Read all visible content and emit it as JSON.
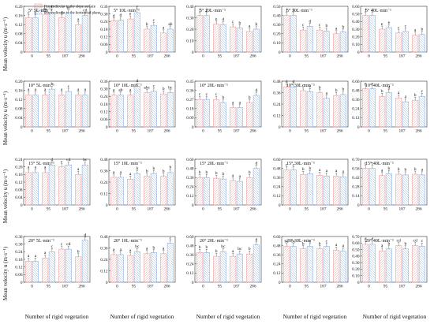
{
  "figure": {
    "legend": [
      "Perpendicular to the slope surface",
      "Perpendicular to the horizontal plane"
    ],
    "xlabel": "Number of rigid vegetation",
    "ylabel": "Mean velocity u (m·s⁻¹)",
    "colors": {
      "series1": "#f2a2a2",
      "series2": "#8fb3e3",
      "bg": "#ffffff",
      "axis": "#333333"
    }
  },
  "chart_data": [
    {
      "type": "bar",
      "title": "5°  5L·min⁻¹",
      "categories": [
        "0",
        "95",
        "187",
        "286"
      ],
      "ylim": [
        0,
        0.2
      ],
      "yticks": [
        0,
        0.04,
        0.08,
        0.12,
        0.16,
        0.2
      ],
      "series": [
        {
          "values": [
            0.15,
            0.165,
            0.15,
            0.12
          ]
        },
        {
          "values": [
            0.15,
            0.175,
            0.17,
            0.16
          ]
        }
      ],
      "labels": [
        [
          "c",
          "de",
          "d",
          "a"
        ],
        [
          "c",
          "f",
          "ef",
          "cd"
        ]
      ]
    },
    {
      "type": "bar",
      "title": "5°  10L·min⁻¹",
      "categories": [
        "0",
        "95",
        "187",
        "286"
      ],
      "ylim": [
        0,
        0.36
      ],
      "yticks": [
        0,
        0.06,
        0.12,
        0.18,
        0.24,
        0.3,
        0.36
      ],
      "series": [
        {
          "values": [
            0.245,
            0.26,
            0.18,
            0.15
          ]
        },
        {
          "values": [
            0.25,
            0.31,
            0.21,
            0.18
          ]
        }
      ],
      "labels": [
        [
          "d",
          "e",
          "b",
          "a"
        ],
        [
          "d",
          "f",
          "c",
          "ab"
        ]
      ]
    },
    {
      "type": "bar",
      "title": "5°  20L·min⁻¹",
      "categories": [
        "0",
        "95",
        "187",
        "286"
      ],
      "ylim": [
        0,
        0.4
      ],
      "yticks": [
        0,
        0.1,
        0.2,
        0.3,
        0.4
      ],
      "series": [
        {
          "values": [
            0.32,
            0.245,
            0.22,
            0.18
          ]
        },
        {
          "values": [
            0.32,
            0.24,
            0.21,
            0.2
          ]
        }
      ],
      "labels": [
        [
          "f",
          "e",
          "c",
          "a"
        ],
        [
          "f",
          "d",
          "b",
          "b"
        ]
      ]
    },
    {
      "type": "bar",
      "title": "5°  30L·min⁻¹",
      "categories": [
        "0",
        "95",
        "187",
        "286"
      ],
      "ylim": [
        0,
        0.5
      ],
      "yticks": [
        0,
        0.1,
        0.2,
        0.3,
        0.4,
        0.5
      ],
      "series": [
        {
          "values": [
            0.4,
            0.24,
            0.24,
            0.2
          ]
        },
        {
          "values": [
            0.4,
            0.28,
            0.23,
            0.22
          ]
        }
      ],
      "labels": [
        [
          "f",
          "c",
          "c",
          "a"
        ],
        [
          "f",
          "d",
          "b",
          "b"
        ]
      ]
    },
    {
      "type": "bar",
      "title": "5°  40L·min⁻¹",
      "categories": [
        "0",
        "95",
        "187",
        "286"
      ],
      "ylim": [
        0,
        0.6
      ],
      "yticks": [
        0,
        0.1,
        0.2,
        0.3,
        0.4,
        0.5,
        0.6
      ],
      "series": [
        {
          "values": [
            0.48,
            0.3,
            0.25,
            0.22
          ]
        },
        {
          "values": [
            0.48,
            0.32,
            0.27,
            0.23
          ]
        }
      ],
      "labels": [
        [
          "f",
          "e",
          "c",
          "a"
        ],
        [
          "f",
          "e",
          "c",
          "b"
        ]
      ]
    },
    {
      "type": "bar",
      "title": "10°  5L·min⁻¹",
      "categories": [
        "0",
        "95",
        "187",
        "286"
      ],
      "ylim": [
        0,
        0.2
      ],
      "yticks": [
        0,
        0.04,
        0.08,
        0.12,
        0.16,
        0.2
      ],
      "series": [
        {
          "values": [
            0.14,
            0.14,
            0.14,
            0.14
          ]
        },
        {
          "values": [
            0.14,
            0.165,
            0.155,
            0.14
          ]
        }
      ],
      "labels": [
        [
          "a",
          "a",
          "a",
          "a"
        ],
        [
          "a",
          "b",
          "c",
          "a"
        ]
      ]
    },
    {
      "type": "bar",
      "title": "10°  10L·min⁻¹",
      "categories": [
        "0",
        "95",
        "187",
        "286"
      ],
      "ylim": [
        0,
        0.36
      ],
      "yticks": [
        0,
        0.06,
        0.12,
        0.18,
        0.24,
        0.3,
        0.36
      ],
      "series": [
        {
          "values": [
            0.25,
            0.25,
            0.27,
            0.26
          ]
        },
        {
          "values": [
            0.25,
            0.32,
            0.28,
            0.27
          ]
        }
      ],
      "labels": [
        [
          "a",
          "a",
          "abc",
          "b"
        ],
        [
          "ab",
          "d",
          "c",
          "bc"
        ]
      ]
    },
    {
      "type": "bar",
      "title": "10°  20L·min⁻¹",
      "categories": [
        "0",
        "95",
        "187",
        "286"
      ],
      "ylim": [
        0,
        0.45
      ],
      "yticks": [
        0,
        0.09,
        0.18,
        0.27,
        0.36,
        0.45
      ],
      "series": [
        {
          "values": [
            0.27,
            0.27,
            0.19,
            0.24
          ]
        },
        {
          "values": [
            0.27,
            0.24,
            0.19,
            0.31
          ]
        }
      ],
      "labels": [
        [
          "c",
          "c",
          "a",
          "b"
        ],
        [
          "c",
          "b",
          "a",
          "d"
        ]
      ]
    },
    {
      "type": "bar",
      "title": "10°  30L·min⁻¹",
      "categories": [
        "0",
        "95",
        "187",
        "286"
      ],
      "ylim": [
        0,
        0.48
      ],
      "yticks": [
        0,
        0.12,
        0.24,
        0.36,
        0.48
      ],
      "series": [
        {
          "values": [
            0.42,
            0.38,
            0.36,
            0.33
          ]
        },
        {
          "values": [
            0.42,
            0.37,
            0.3,
            0.34
          ]
        }
      ],
      "labels": [
        [
          "d",
          "c",
          "b",
          "b"
        ],
        [
          "d",
          "c",
          "a",
          "b"
        ]
      ]
    },
    {
      "type": "bar",
      "title": "10°  40L·min⁻¹",
      "categories": [
        "0",
        "95",
        "187",
        "286"
      ],
      "ylim": [
        0,
        0.6
      ],
      "yticks": [
        0,
        0.12,
        0.24,
        0.36,
        0.48,
        0.6
      ],
      "series": [
        {
          "values": [
            0.5,
            0.4,
            0.38,
            0.35
          ]
        },
        {
          "values": [
            0.5,
            0.45,
            0.33,
            0.4
          ]
        }
      ],
      "labels": [
        [
          "e",
          "b",
          "a",
          "b"
        ],
        [
          "e",
          "d",
          "a",
          "c"
        ]
      ]
    },
    {
      "type": "bar",
      "title": "15°  5L·min⁻¹",
      "categories": [
        "0",
        "95",
        "187",
        "286"
      ],
      "ylim": [
        0,
        0.24
      ],
      "yticks": [
        0,
        0.04,
        0.08,
        0.12,
        0.16,
        0.2,
        0.24
      ],
      "series": [
        {
          "values": [
            0.17,
            0.17,
            0.2,
            0.16
          ]
        },
        {
          "values": [
            0.17,
            0.21,
            0.21,
            0.21
          ]
        }
      ],
      "labels": [
        [
          "a",
          "a",
          "c",
          "a"
        ],
        [
          "a",
          "d",
          "cd",
          "bc"
        ]
      ]
    },
    {
      "type": "bar",
      "title": "15°  10L·min⁻¹",
      "categories": [
        "0",
        "95",
        "187",
        "286"
      ],
      "ylim": [
        0,
        0.48
      ],
      "yticks": [
        0,
        0.12,
        0.24,
        0.36,
        0.48
      ],
      "series": [
        {
          "values": [
            0.29,
            0.27,
            0.3,
            0.3
          ]
        },
        {
          "values": [
            0.29,
            0.33,
            0.33,
            0.34
          ]
        }
      ],
      "labels": [
        [
          "a",
          "a",
          "b",
          "b"
        ],
        [
          "a",
          "b",
          "b",
          "b"
        ]
      ]
    },
    {
      "type": "bar",
      "title": "15°  20L·min⁻¹",
      "categories": [
        "0",
        "95",
        "187",
        "286"
      ],
      "ylim": [
        0,
        0.6
      ],
      "yticks": [
        0,
        0.12,
        0.24,
        0.36,
        0.48,
        0.6
      ],
      "series": [
        {
          "values": [
            0.36,
            0.35,
            0.32,
            0.36
          ]
        },
        {
          "values": [
            0.36,
            0.34,
            0.31,
            0.48
          ]
        }
      ],
      "labels": [
        [
          "b",
          "b",
          "a",
          "b"
        ],
        [
          "b",
          "b",
          "a",
          "d"
        ]
      ]
    },
    {
      "type": "bar",
      "title": "15°  30L·min⁻¹",
      "categories": [
        "0",
        "95",
        "187",
        "286"
      ],
      "ylim": [
        0,
        0.6
      ],
      "yticks": [
        0,
        0.12,
        0.24,
        0.36,
        0.48,
        0.6
      ],
      "series": [
        {
          "values": [
            0.46,
            0.4,
            0.39,
            0.38
          ]
        },
        {
          "values": [
            0.46,
            0.41,
            0.38,
            0.37
          ]
        }
      ],
      "labels": [
        [
          "c",
          "b",
          "a",
          "a"
        ],
        [
          "c",
          "b",
          "a",
          "a"
        ]
      ]
    },
    {
      "type": "bar",
      "title": "15°  40L·min⁻¹",
      "categories": [
        "0",
        "95",
        "187",
        "286"
      ],
      "ylim": [
        0,
        0.7
      ],
      "yticks": [
        0,
        0.14,
        0.28,
        0.42,
        0.56,
        0.7
      ],
      "series": [
        {
          "values": [
            0.56,
            0.45,
            0.47,
            0.47
          ]
        },
        {
          "values": [
            0.56,
            0.48,
            0.46,
            0.46
          ]
        }
      ],
      "labels": [
        [
          "c",
          "a",
          "b",
          "b"
        ],
        [
          "c",
          "b",
          "b",
          "a"
        ]
      ]
    },
    {
      "type": "bar",
      "title": "20°  5L·min⁻¹",
      "categories": [
        "0",
        "95",
        "187",
        "286"
      ],
      "ylim": [
        0,
        0.36
      ],
      "yticks": [
        0,
        0.06,
        0.12,
        0.18,
        0.24,
        0.3,
        0.36
      ],
      "series": [
        {
          "values": [
            0.165,
            0.19,
            0.26,
            0.2
          ]
        },
        {
          "values": [
            0.165,
            0.24,
            0.26,
            0.33
          ]
        }
      ],
      "labels": [
        [
          "a",
          "a",
          "c",
          "b"
        ],
        [
          "a",
          "c",
          "cd",
          "d"
        ]
      ]
    },
    {
      "type": "bar",
      "title": "20°  10L·min⁻¹",
      "categories": [
        "0",
        "95",
        "187",
        "286"
      ],
      "ylim": [
        0,
        0.48
      ],
      "yticks": [
        0,
        0.12,
        0.24,
        0.36,
        0.48
      ],
      "series": [
        {
          "values": [
            0.29,
            0.28,
            0.3,
            0.3
          ]
        },
        {
          "values": [
            0.29,
            0.32,
            0.31,
            0.41
          ]
        }
      ],
      "labels": [
        [
          "a",
          "a",
          "a",
          "a"
        ],
        [
          "a",
          "bc",
          "b",
          "c"
        ]
      ]
    },
    {
      "type": "bar",
      "title": "20°  20L·min⁻¹",
      "categories": [
        "0",
        "95",
        "187",
        "286"
      ],
      "ylim": [
        0,
        0.6
      ],
      "yticks": [
        0,
        0.12,
        0.24,
        0.36,
        0.48,
        0.6
      ],
      "series": [
        {
          "values": [
            0.39,
            0.34,
            0.34,
            0.37
          ]
        },
        {
          "values": [
            0.39,
            0.4,
            0.37,
            0.49
          ]
        }
      ],
      "labels": [
        [
          "b",
          "b",
          "a",
          "b"
        ],
        [
          "b",
          "bc",
          "bc",
          "d"
        ]
      ]
    },
    {
      "type": "bar",
      "title": "20°  30L·min⁻¹",
      "categories": [
        "0",
        "95",
        "187",
        "286"
      ],
      "ylim": [
        0,
        0.6
      ],
      "yticks": [
        0,
        0.12,
        0.24,
        0.36,
        0.48,
        0.6
      ],
      "series": [
        {
          "values": [
            0.47,
            0.44,
            0.44,
            0.42
          ]
        },
        {
          "values": [
            0.47,
            0.47,
            0.47,
            0.41
          ]
        }
      ],
      "labels": [
        [
          "bc",
          "b",
          "b",
          "a"
        ],
        [
          "bc",
          "c",
          "c",
          "a"
        ]
      ]
    },
    {
      "type": "bar",
      "title": "20°  40L·min⁻¹",
      "categories": [
        "0",
        "95",
        "187",
        "286"
      ],
      "ylim": [
        0,
        0.7
      ],
      "yticks": [
        0,
        0.1,
        0.2,
        0.3,
        0.4,
        0.5,
        0.6,
        0.7
      ],
      "series": [
        {
          "values": [
            0.58,
            0.48,
            0.56,
            0.56
          ]
        },
        {
          "values": [
            0.58,
            0.51,
            0.51,
            0.55
          ]
        }
      ],
      "labels": [
        [
          "d",
          "a",
          "cd",
          "cd"
        ],
        [
          "d",
          "b",
          "b",
          "c"
        ]
      ]
    }
  ]
}
